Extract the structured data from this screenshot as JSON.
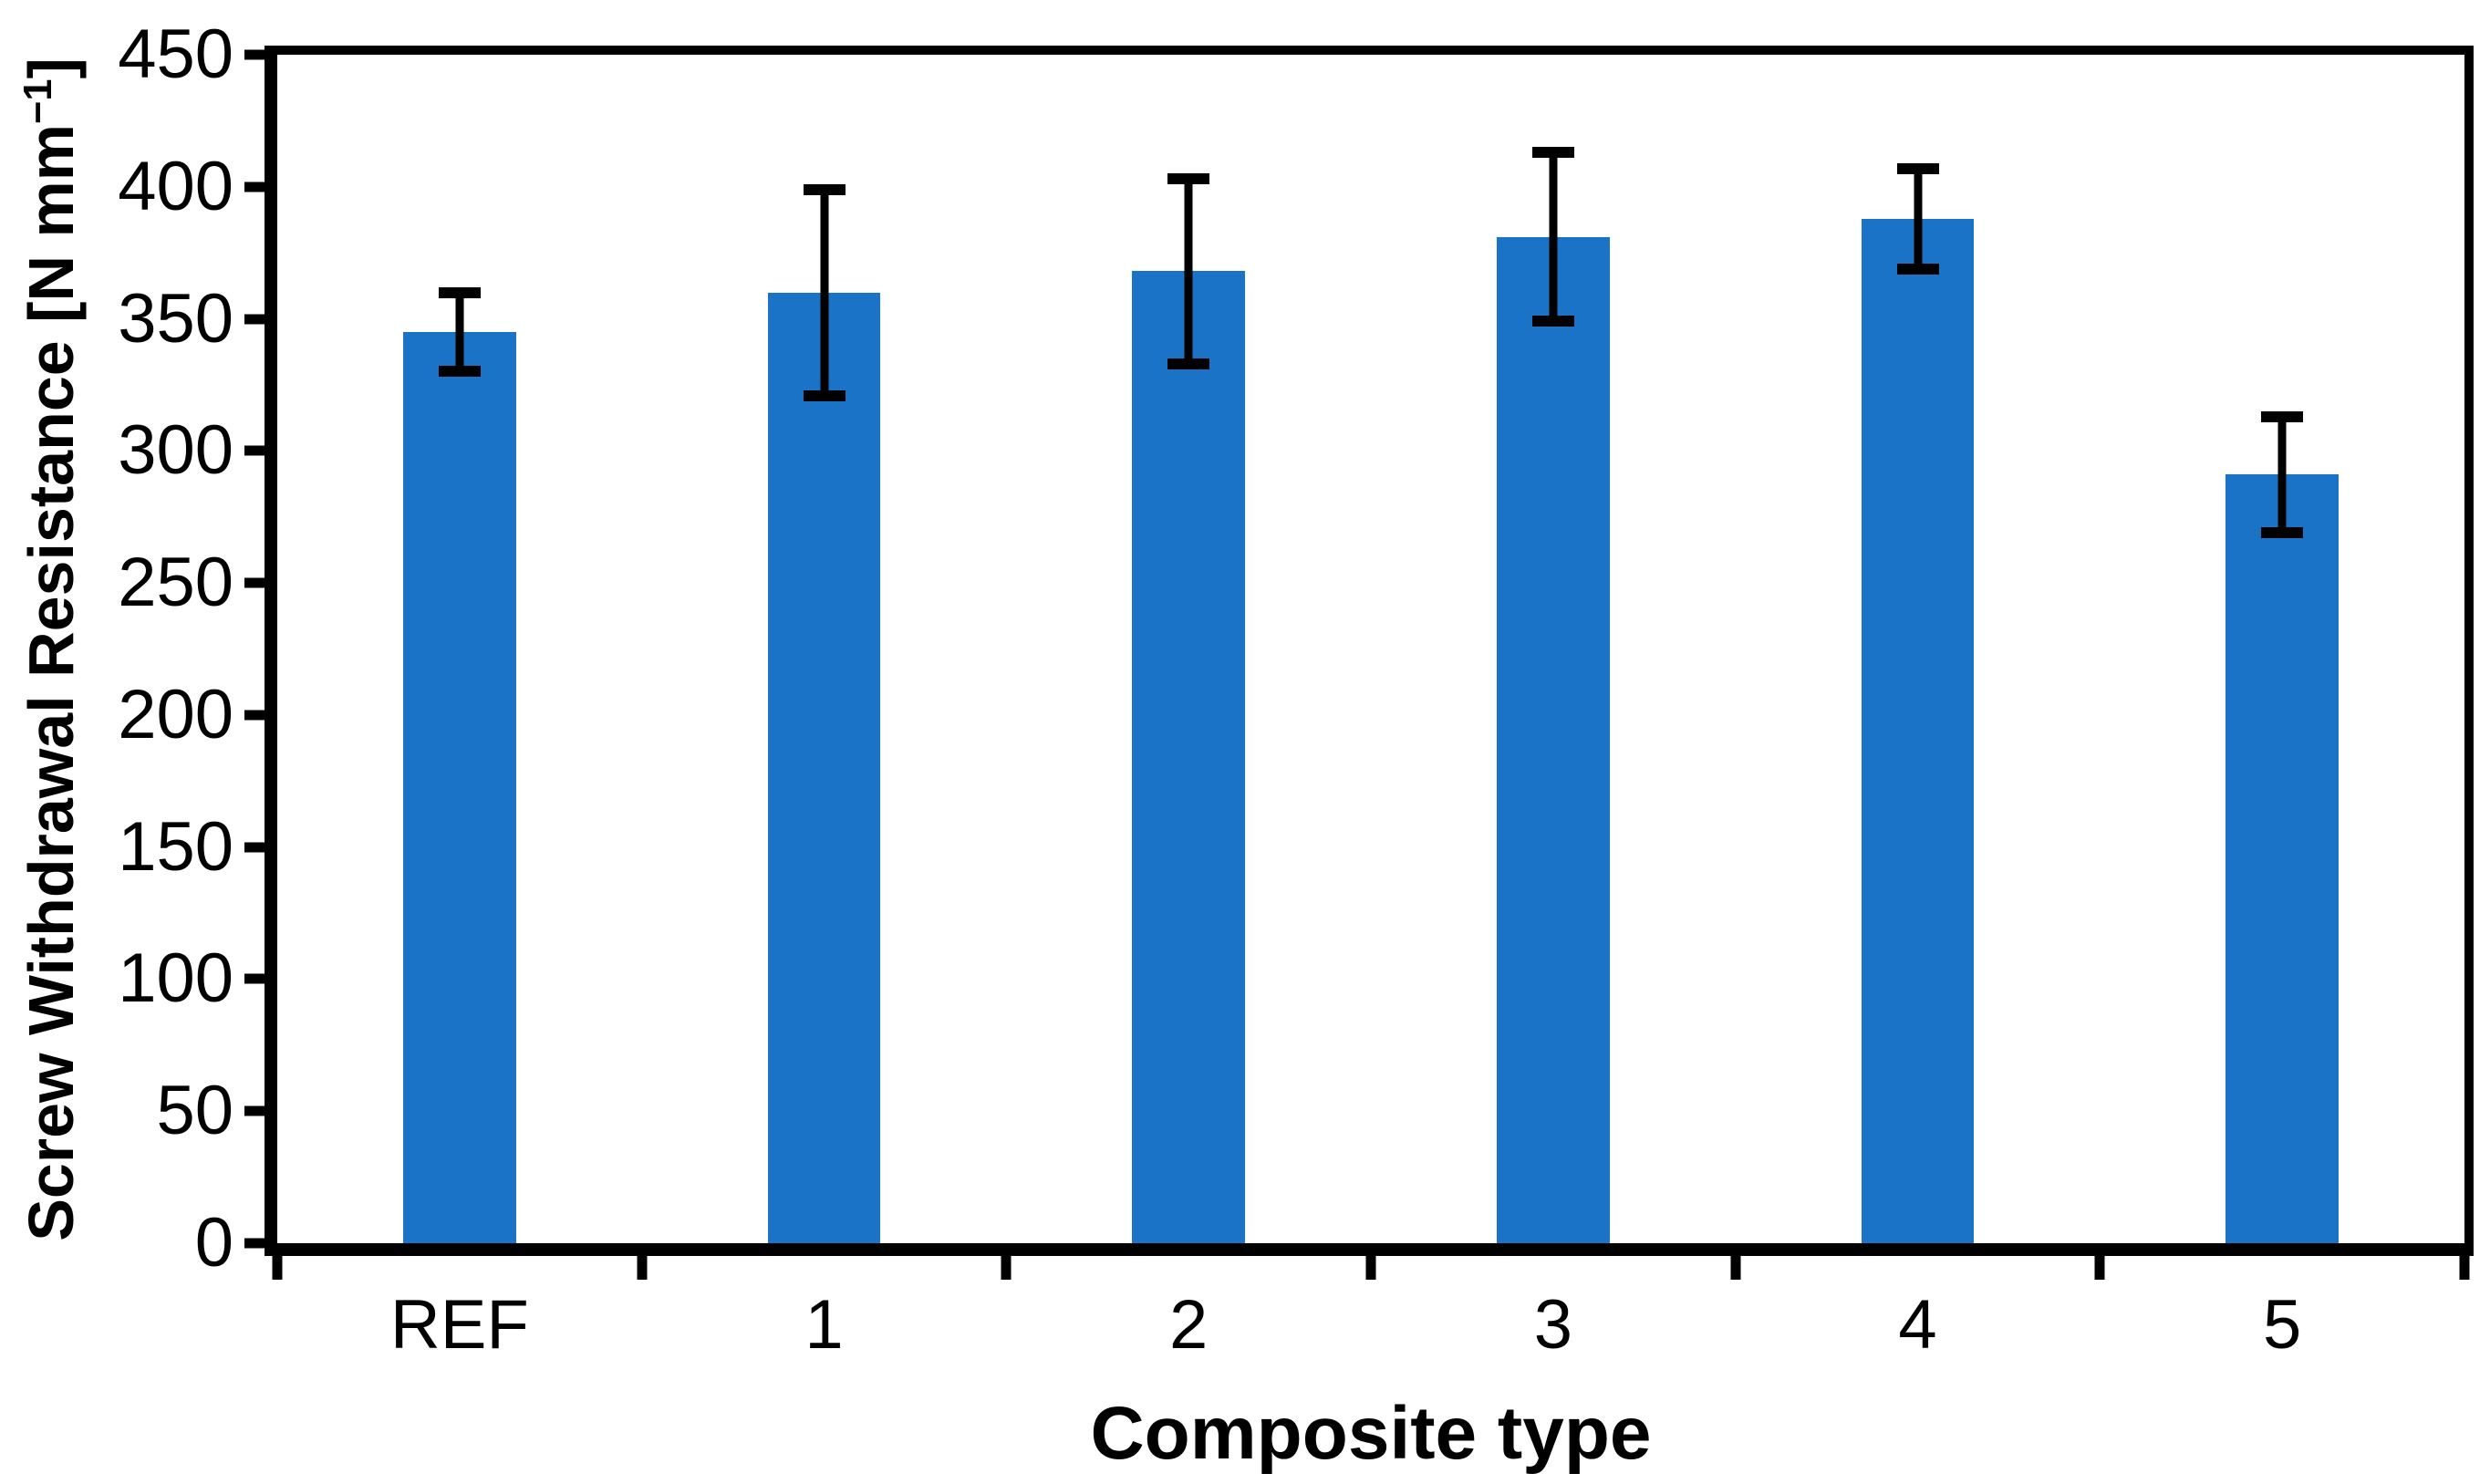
{
  "figure": {
    "background": "#ffffff",
    "axis_color": "#000000"
  },
  "chart_data": {
    "type": "bar",
    "title": "",
    "xlabel": "Composite type",
    "ylabel_prefix": "Screw Withdrawal Resistance [N mm",
    "ylabel_superscript": "−1",
    "ylabel_suffix": "]",
    "categories": [
      "REF",
      "1",
      "2",
      "3",
      "4",
      "5"
    ],
    "values": [
      345,
      360,
      368,
      381,
      388,
      291
    ],
    "error_bars": [
      15,
      39,
      35,
      32,
      19,
      22
    ],
    "whisker_tops": [
      360,
      399,
      403,
      413,
      407,
      313
    ],
    "whisker_bottoms": [
      330,
      321,
      333,
      349,
      369,
      269
    ],
    "ylim": [
      0,
      450
    ],
    "y_ticks": [
      0,
      50,
      100,
      150,
      200,
      250,
      300,
      350,
      400,
      450
    ],
    "grid": "off",
    "legend": "none",
    "bar_color": "#1B73C8",
    "bar_width_fraction": 0.31
  }
}
